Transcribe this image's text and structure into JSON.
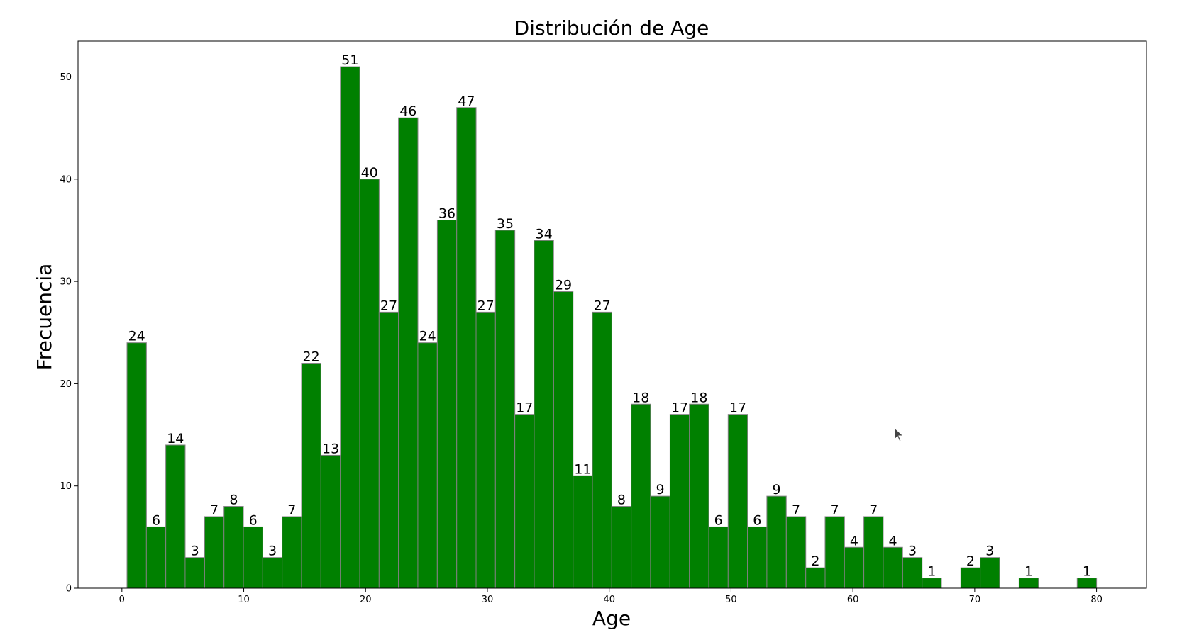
{
  "colors": {
    "bar_fill": "#008000",
    "bar_edge": "#808080",
    "axis": "#000000"
  },
  "cursor": {
    "icon": "mouse-pointer-icon"
  },
  "chart_data": {
    "type": "bar",
    "title": "Distribución de Age",
    "xlabel": "Age",
    "ylabel": "Frecuencia",
    "xlim": [
      -3.6,
      84.1
    ],
    "ylim": [
      0,
      53.5
    ],
    "xticks": [
      0,
      10,
      20,
      30,
      40,
      50,
      60,
      70,
      80
    ],
    "yticks": [
      0,
      10,
      20,
      30,
      40,
      50
    ],
    "bin_width": 1.5916,
    "bins_start": [
      0.42,
      2.01,
      3.6,
      5.19,
      6.79,
      8.38,
      9.97,
      11.56,
      13.15,
      14.74,
      16.34,
      17.93,
      19.52,
      21.11,
      22.7,
      24.29,
      25.89,
      27.48,
      29.07,
      30.66,
      32.25,
      33.84,
      35.44,
      37.03,
      38.62,
      40.21,
      41.8,
      43.39,
      44.99,
      46.58,
      48.17,
      49.76,
      51.35,
      52.94,
      54.54,
      56.13,
      57.72,
      59.31,
      60.9,
      62.49,
      64.09,
      65.68,
      67.27,
      68.86,
      70.45,
      72.04,
      73.64,
      75.23,
      76.82,
      78.41
    ],
    "values": [
      24,
      6,
      14,
      3,
      7,
      8,
      6,
      3,
      7,
      22,
      13,
      51,
      40,
      27,
      46,
      24,
      36,
      47,
      27,
      35,
      17,
      34,
      29,
      11,
      27,
      8,
      18,
      9,
      17,
      18,
      6,
      17,
      6,
      9,
      7,
      2,
      7,
      4,
      7,
      4,
      3,
      1,
      0,
      2,
      3,
      0,
      1,
      0,
      0,
      1
    ],
    "grid": false,
    "legend": "none"
  }
}
